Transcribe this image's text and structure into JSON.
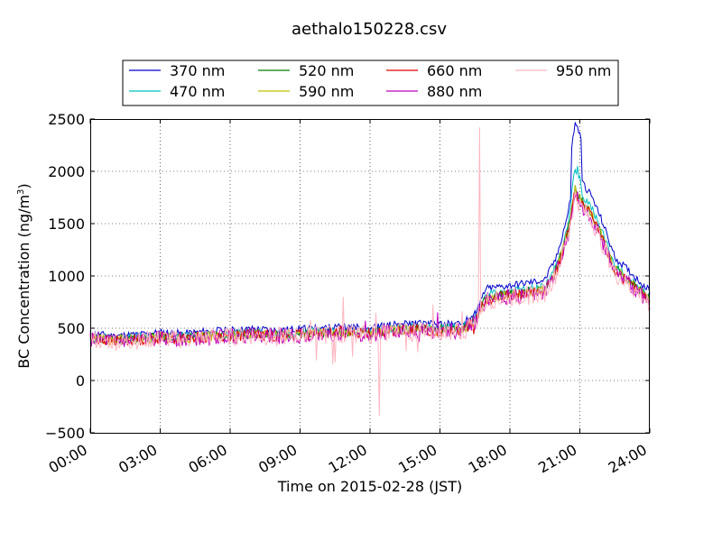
{
  "chart_data": {
    "type": "line",
    "title": "aethalo150228.csv",
    "xlabel": "Time on 2015-02-28 (JST)",
    "ylabel": "BC Concentration (ng/m",
    "ylabel_sup": "3",
    "ylabel_close": ")",
    "x_unit": "hours",
    "xlim": [
      0,
      24
    ],
    "ylim": [
      -500,
      2500
    ],
    "x_ticks": [
      0,
      3,
      6,
      9,
      12,
      15,
      18,
      21,
      24
    ],
    "x_tick_labels": [
      "00:00",
      "03:00",
      "06:00",
      "09:00",
      "12:00",
      "15:00",
      "18:00",
      "21:00",
      "24:00"
    ],
    "y_ticks": [
      -500,
      0,
      500,
      1000,
      1500,
      2000,
      2500
    ],
    "y_tick_labels": [
      "−500",
      "0",
      "500",
      "1000",
      "1500",
      "2000",
      "2500"
    ],
    "grid": true,
    "legend_placement": "top, above plot",
    "base_profile": {
      "x": [
        0,
        1,
        2,
        3,
        4,
        5,
        6,
        7,
        8,
        9,
        10,
        11,
        12,
        13,
        14,
        15,
        16,
        16.5,
        17,
        18,
        19,
        19.5,
        20,
        20.5,
        20.8,
        21,
        21.5,
        22,
        22.5,
        23,
        24
      ],
      "y": [
        420,
        400,
        410,
        430,
        420,
        440,
        450,
        460,
        450,
        460,
        470,
        480,
        470,
        500,
        510,
        500,
        510,
        600,
        820,
        850,
        880,
        900,
        1100,
        1500,
        1900,
        1800,
        1650,
        1400,
        1100,
        1000,
        800
      ]
    },
    "series": [
      {
        "name": "370 nm",
        "color": "#0000cc",
        "scale": 1.07,
        "noise": 35,
        "spike": 0,
        "seed": 11
      },
      {
        "name": "470 nm",
        "color": "#00bfbf",
        "scale": 1.0,
        "noise": 40,
        "spike": 0,
        "seed": 22
      },
      {
        "name": "520 nm",
        "color": "#007f00",
        "scale": 0.97,
        "noise": 45,
        "spike": 0.1,
        "seed": 33
      },
      {
        "name": "590 nm",
        "color": "#bfbf00",
        "scale": 0.96,
        "noise": 50,
        "spike": 0.1,
        "seed": 44
      },
      {
        "name": "660 nm",
        "color": "#e00000",
        "scale": 0.95,
        "noise": 55,
        "spike": 0.3,
        "seed": 55
      },
      {
        "name": "880 nm",
        "color": "#bf00bf",
        "scale": 0.94,
        "noise": 75,
        "spike": 0.6,
        "seed": 66
      },
      {
        "name": "950 nm",
        "color": "#ffb6c1",
        "scale": 0.93,
        "noise": 90,
        "spike": 1.0,
        "seed": 77
      }
    ],
    "annotated_extremes": [
      {
        "series": "370 nm",
        "x": 20.9,
        "y": 2430
      },
      {
        "series": "470 nm",
        "x": 20.9,
        "y": 2050
      },
      {
        "series": "950 nm",
        "x": 16.7,
        "y": 2420
      },
      {
        "series": "950 nm",
        "x": 12.4,
        "y": -340
      }
    ]
  }
}
